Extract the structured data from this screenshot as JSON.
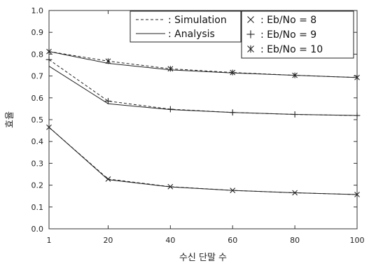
{
  "chart_data": {
    "type": "line",
    "xlabel": "수신 단말 수",
    "ylabel": "효율",
    "x": [
      1,
      20,
      40,
      60,
      80,
      100
    ],
    "x_ticks": [
      "1",
      "20",
      "40",
      "60",
      "80",
      "100"
    ],
    "xlim": [
      1,
      100
    ],
    "ylim": [
      0.0,
      1.0
    ],
    "y_ticks": [
      "0.0",
      "0.1",
      "0.2",
      "0.3",
      "0.4",
      "0.5",
      "0.6",
      "0.7",
      "0.8",
      "0.9",
      "1.0"
    ],
    "grid": false,
    "legend_lines": [
      {
        "style": "dashed",
        "label": ": Simulation"
      },
      {
        "style": "solid",
        "label": ": Analysis"
      }
    ],
    "legend_markers": [
      {
        "marker": "x",
        "label": ": Eb/No = 8"
      },
      {
        "marker": "+",
        "label": ": Eb/No = 9"
      },
      {
        "marker": "*",
        "label": ": Eb/No = 10"
      }
    ],
    "series": [
      {
        "ebno": 8,
        "marker": "x",
        "simulation": [
          0.465,
          0.228,
          0.193,
          0.176,
          0.165,
          0.157
        ],
        "analysis": [
          0.465,
          0.225,
          0.192,
          0.176,
          0.165,
          0.157
        ]
      },
      {
        "ebno": 9,
        "marker": "+",
        "simulation": [
          0.775,
          0.585,
          0.548,
          0.533,
          0.524,
          0.519
        ],
        "analysis": [
          0.745,
          0.573,
          0.546,
          0.533,
          0.524,
          0.519
        ]
      },
      {
        "ebno": 10,
        "marker": "*",
        "simulation": [
          0.812,
          0.768,
          0.733,
          0.716,
          0.703,
          0.693
        ],
        "analysis": [
          0.812,
          0.758,
          0.728,
          0.714,
          0.703,
          0.693
        ]
      }
    ],
    "colors": {
      "line": "#222222",
      "axis": "#333333"
    }
  }
}
